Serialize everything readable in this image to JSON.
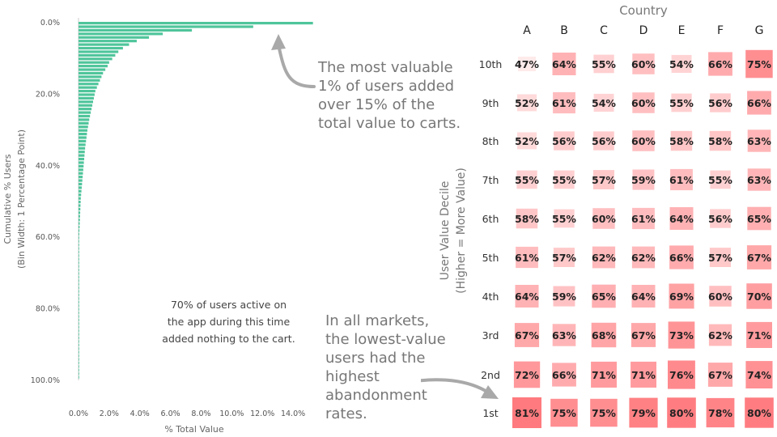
{
  "chart_data": [
    {
      "type": "bar",
      "orientation": "horizontal",
      "xlabel": "% Total Value",
      "ylabel": "Cumulative % Users",
      "ylabel_sub": "(Bin Width: 1 Percentage Point)",
      "xlim": [
        0,
        15
      ],
      "ylim": [
        0,
        100
      ],
      "x_ticks": [
        "0.0%",
        "2.0%",
        "4.0%",
        "6.0%",
        "8.0%",
        "10.0%",
        "12.0%",
        "14.0%"
      ],
      "y_ticks": [
        "0.0%",
        "20.0%",
        "40.0%",
        "60.0%",
        "80.0%",
        "100.0%"
      ],
      "values": [
        15.3,
        11.4,
        7.4,
        5.5,
        4.6,
        3.8,
        3.3,
        2.9,
        2.6,
        2.4,
        2.2,
        2.0,
        1.9,
        1.75,
        1.6,
        1.5,
        1.4,
        1.3,
        1.2,
        1.1,
        1.05,
        1.0,
        0.95,
        0.9,
        0.85,
        0.8,
        0.75,
        0.7,
        0.66,
        0.62,
        0.58,
        0.55,
        0.52,
        0.49,
        0.46,
        0.43,
        0.41,
        0.39,
        0.37,
        0.35,
        0.33,
        0.31,
        0.29,
        0.27,
        0.25,
        0.23,
        0.21,
        0.19,
        0.17,
        0.15,
        0.14,
        0.13,
        0.12,
        0.11,
        0.1,
        0.09,
        0.08,
        0.07,
        0.06,
        0.05,
        0.045,
        0.04,
        0.035,
        0.03,
        0.025,
        0.02,
        0.018,
        0.016,
        0.014,
        0.012,
        0.01,
        0.01,
        0.01,
        0.01,
        0.01,
        0.01,
        0.01,
        0.01,
        0.01,
        0.01,
        0.01,
        0.01,
        0.01,
        0.01,
        0.01,
        0.01,
        0.01,
        0.01,
        0.01,
        0.01,
        0.01,
        0.01,
        0.01,
        0.01,
        0.01,
        0.01,
        0.01,
        0.01,
        0.01,
        0.01
      ],
      "bar_color": "#4fc59b",
      "grid": false
    },
    {
      "type": "heatmap",
      "title": "Country",
      "ylabel": "User Value Decile",
      "ylabel_sub": "(Higher = More Value)",
      "columns": [
        "A",
        "B",
        "C",
        "D",
        "E",
        "F",
        "G"
      ],
      "rows": [
        "10th",
        "9th",
        "8th",
        "7th",
        "6th",
        "5th",
        "4th",
        "3rd",
        "2nd",
        "1st"
      ],
      "values": [
        [
          47,
          64,
          55,
          60,
          54,
          66,
          75
        ],
        [
          52,
          61,
          54,
          60,
          55,
          56,
          66
        ],
        [
          52,
          56,
          56,
          60,
          58,
          58,
          63
        ],
        [
          55,
          55,
          57,
          59,
          61,
          55,
          63
        ],
        [
          58,
          55,
          60,
          61,
          64,
          56,
          65
        ],
        [
          61,
          57,
          62,
          62,
          66,
          57,
          67
        ],
        [
          64,
          59,
          65,
          64,
          69,
          60,
          70
        ],
        [
          67,
          63,
          68,
          67,
          73,
          62,
          71
        ],
        [
          72,
          66,
          71,
          71,
          76,
          67,
          74
        ],
        [
          81,
          75,
          75,
          79,
          80,
          78,
          80
        ]
      ],
      "value_suffix": "%",
      "color_low": "#ffeaea",
      "color_high": "#ff7a7e"
    }
  ],
  "annotations": {
    "top_right": "The most valuable\n1% of users added\nover 15% of the\ntotal value to carts.",
    "middle": "70% of users active on\nthe app during this time\nadded nothing to the cart.",
    "bottom": "In all markets,\nthe lowest-value\nusers had the\nhighest\nabandonment\nrates."
  },
  "colors": {
    "arrow": "#a9a9a9",
    "axis_text": "#555555"
  }
}
